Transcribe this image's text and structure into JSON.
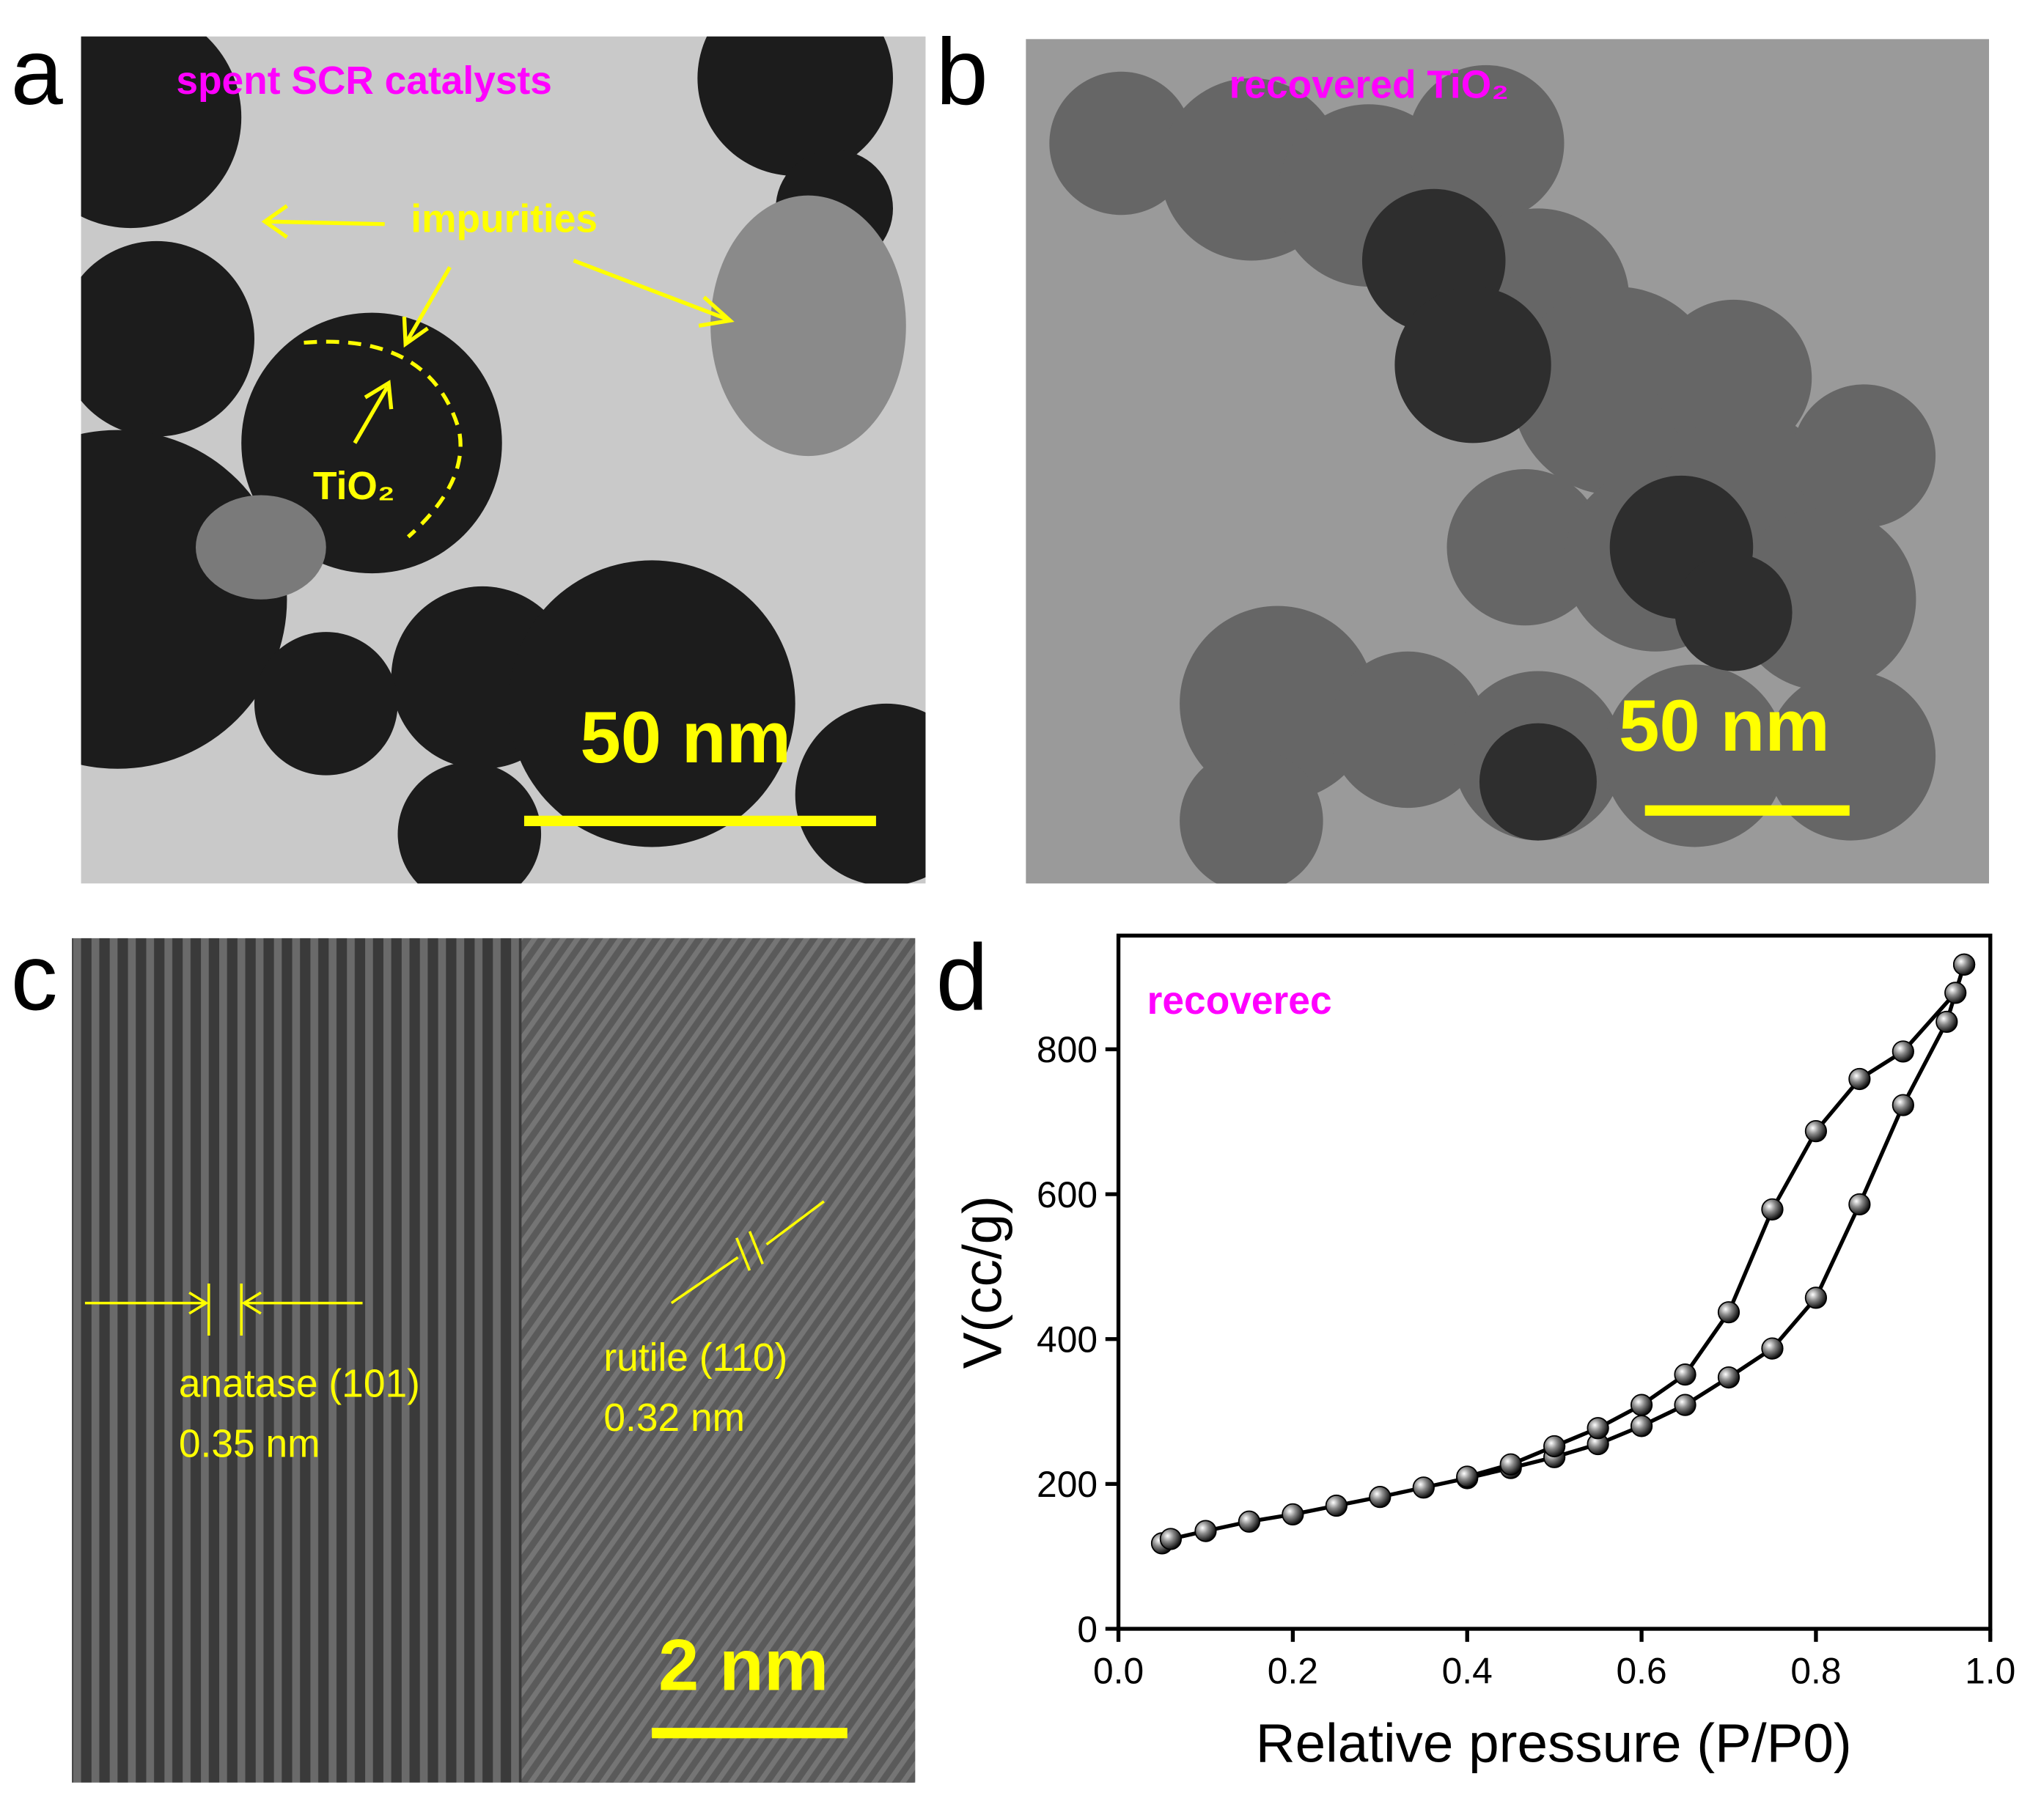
{
  "panels": [
    {
      "letter": "a",
      "title": "spent SCR catalysts",
      "annotations": [
        "impurities",
        "TiO₂"
      ],
      "scale_bar": "50 nm"
    },
    {
      "letter": "b",
      "title": "recovered TiO₂",
      "scale_bar": "50 nm"
    },
    {
      "letter": "c",
      "annotations": [
        "anatase (101)",
        "0.35 nm",
        "rutile (110)",
        "0.32 nm"
      ],
      "scale_bar": "2 nm"
    }
  ],
  "chart_data": {
    "type": "line",
    "panel_letter": "d",
    "annotation": "recoverec",
    "x_label": "Relative pressure (P/P0)",
    "y_label": "V(cc/g)",
    "xlim": [
      0,
      1
    ],
    "ylim": [
      0,
      957
    ],
    "xticks": [
      {
        "value": 0,
        "label": "0.0"
      },
      0.2,
      0.4,
      0.6,
      0.8,
      {
        "value": 1,
        "label": "1.0"
      }
    ],
    "yticks": [
      0,
      200,
      400,
      600,
      800
    ],
    "series": [
      {
        "color": "#000000",
        "x": [
          0.05,
          0.06,
          0.1,
          0.15,
          0.2,
          0.25,
          0.3,
          0.35,
          0.4,
          0.45,
          0.5,
          0.55,
          0.6,
          0.65,
          0.7,
          0.75,
          0.8,
          0.85,
          0.9,
          0.95,
          0.97
        ],
        "values": [
          118,
          124,
          135,
          148,
          158,
          170,
          182,
          195,
          208,
          222,
          237,
          255,
          280,
          309,
          347,
          387,
          457,
          586,
          723,
          838,
          917
        ]
      },
      {
        "color": "#000000",
        "x": [
          0.97,
          0.96,
          0.9,
          0.85,
          0.8,
          0.75,
          0.7,
          0.65,
          0.6,
          0.55,
          0.5,
          0.45,
          0.4
        ],
        "values": [
          917,
          878,
          797,
          759,
          687,
          579,
          437,
          351,
          309,
          277,
          252,
          227,
          210
        ]
      }
    ]
  }
}
